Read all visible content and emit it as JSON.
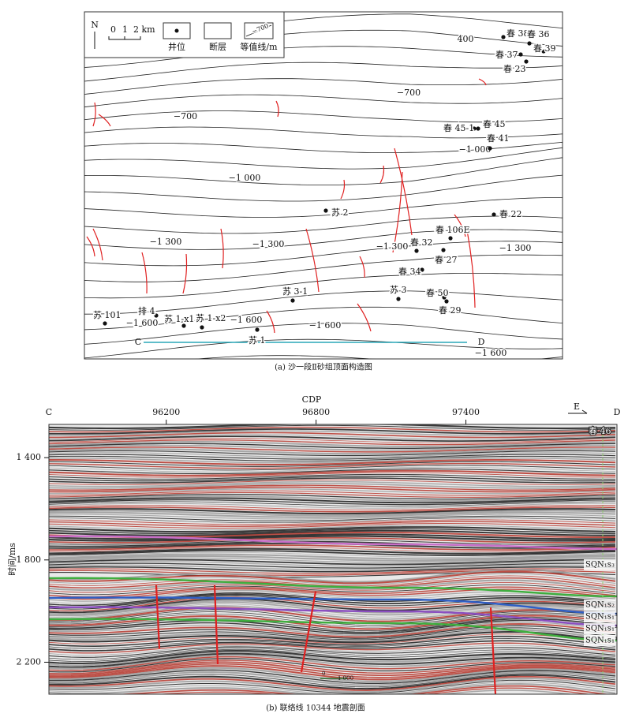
{
  "map": {
    "legend": {
      "north": "N",
      "scale": [
        "0",
        "1",
        "2 km"
      ],
      "well": "井位",
      "fault": "断层",
      "contour": "等值线/m",
      "contour_sample": "−700"
    },
    "contour_labels": [
      "400",
      "−700",
      "−700",
      "−1 000",
      "−1 000",
      "−1 300",
      "−1 300",
      "−1 300",
      "−1 300",
      "−1 600",
      "−1 600",
      "−1 600",
      "−1 600"
    ],
    "wells": [
      "春 38",
      "春 36",
      "春 37",
      "春 39",
      "春 23",
      "春 45-1",
      "春 45",
      "春 41",
      "苏 2",
      "春 22",
      "春 106E",
      "春 32",
      "春 27",
      "春 34",
      "苏 3-1",
      "苏 3",
      "春 50",
      "春 29",
      "苏 101",
      "排 4",
      "苏 1-x1",
      "苏 1-x2",
      "苏 1"
    ],
    "section_line": {
      "start": "C",
      "end": "D"
    },
    "caption": "(a) 沙一段Ⅱ砂组顶面构造图"
  },
  "seismic": {
    "x_axis": {
      "title": "CDP",
      "start": "C",
      "end": "D",
      "direction": "E",
      "lim": [
        95730,
        98005
      ],
      "ticks": [
        96200,
        96800,
        97400
      ]
    },
    "y_axis": {
      "title": "时间/ms",
      "lim": [
        1270,
        2325
      ],
      "ticks": [
        {
          "value": 1400,
          "label": "1 400"
        },
        {
          "value": 1800,
          "label": "1 800"
        },
        {
          "value": 2200,
          "label": "2 200"
        }
      ]
    },
    "well": "春 46",
    "horizons": [
      "SQN₁s₃",
      "SQN₁s₂",
      "SQN₁s₁³",
      "SQN₁s₁²",
      "SQN₁s₁¹"
    ],
    "scale": [
      "0",
      "1 000"
    ],
    "caption": "(b) 联络线 10344 地震剖面"
  }
}
